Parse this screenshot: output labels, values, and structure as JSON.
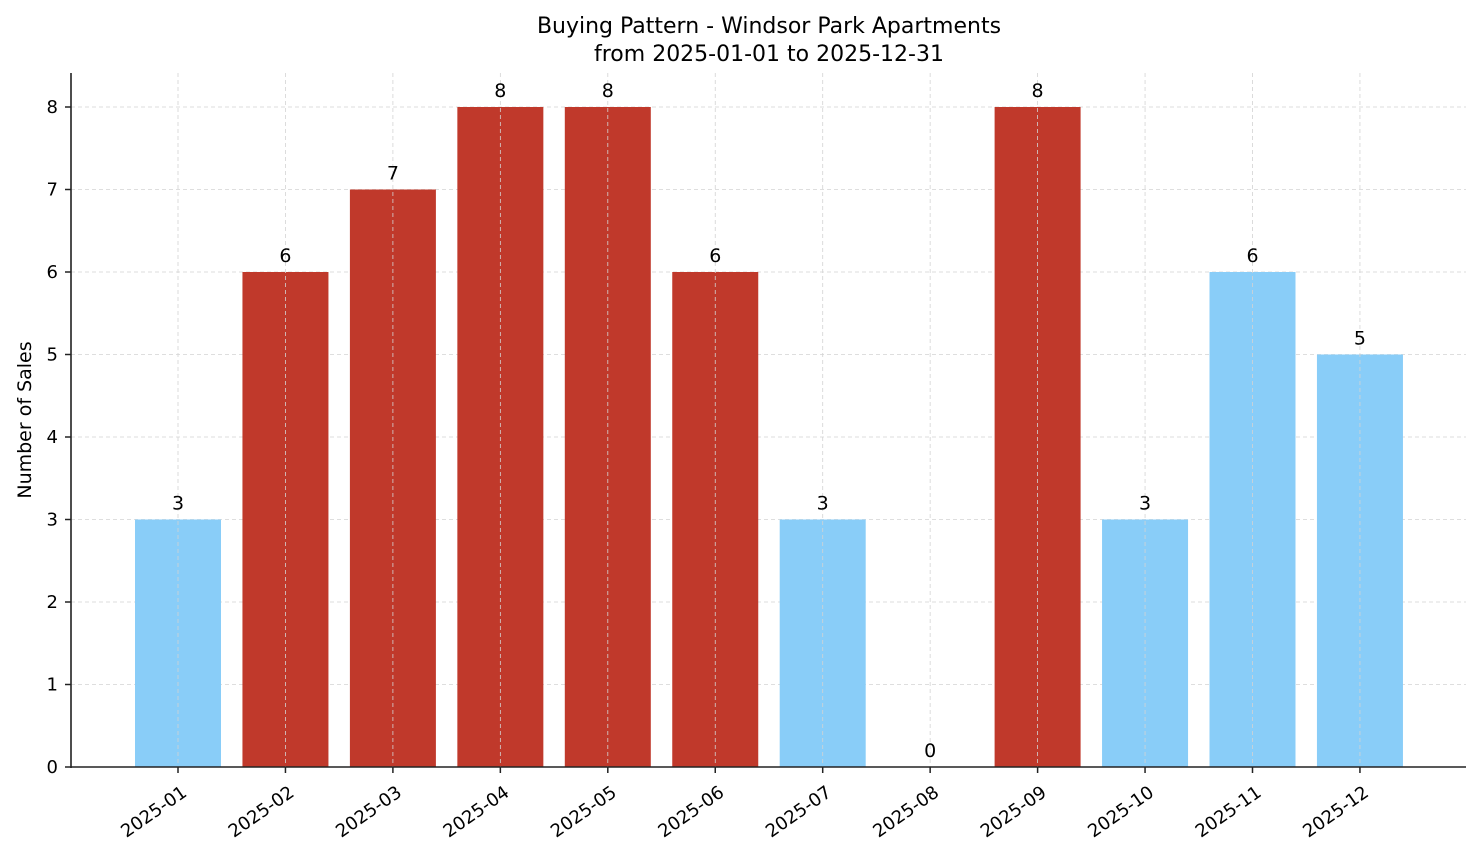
{
  "chart_data": {
    "type": "bar",
    "title": "Buying Pattern - Windsor Park Apartments",
    "subtitle": "from 2025-01-01 to 2025-12-31",
    "xlabel": "",
    "ylabel": "Number of Sales",
    "categories": [
      "2025-01",
      "2025-02",
      "2025-03",
      "2025-04",
      "2025-05",
      "2025-06",
      "2025-07",
      "2025-08",
      "2025-09",
      "2025-10",
      "2025-11",
      "2025-12"
    ],
    "values": [
      3,
      6,
      7,
      8,
      8,
      6,
      3,
      0,
      8,
      3,
      6,
      5
    ],
    "bar_colors": [
      "#89cdf8",
      "#c0392b",
      "#c0392b",
      "#c0392b",
      "#c0392b",
      "#c0392b",
      "#89cdf8",
      "#89cdf8",
      "#c0392b",
      "#89cdf8",
      "#89cdf8",
      "#89cdf8"
    ],
    "yticks": [
      0,
      1,
      2,
      3,
      4,
      5,
      6,
      7,
      8
    ],
    "ylim": [
      0,
      8.4
    ],
    "grid": true,
    "data_labels": true,
    "legend": null
  },
  "colors": {
    "high": "#c0392b",
    "low": "#89cdf8",
    "grid": "#d3d3d3",
    "axis": "#222222"
  }
}
